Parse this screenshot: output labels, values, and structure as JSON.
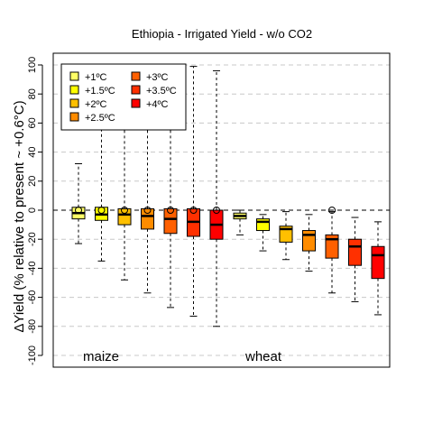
{
  "chart_data": {
    "type": "box",
    "title": "Ethiopia - Irrigated Yield - w/o CO2",
    "ylabel": "ΔYield (% relative to present ~ +0.6°C)",
    "xlabel": "",
    "ylim": [
      -105,
      105
    ],
    "yticks": [
      -100,
      -80,
      -60,
      -40,
      -20,
      0,
      20,
      40,
      60,
      80,
      100
    ],
    "grid": "horizontal-dashed",
    "legend_position": "top-left",
    "legend": [
      {
        "label": "+1ºC",
        "color": "#ffff66"
      },
      {
        "label": "+1.5ºC",
        "color": "#ffff00"
      },
      {
        "label": "+2ºC",
        "color": "#ffc000"
      },
      {
        "label": "+2.5ºC",
        "color": "#ff8c00"
      },
      {
        "label": "+3ºC",
        "color": "#ff6000"
      },
      {
        "label": "+3.5ºC",
        "color": "#ff3000"
      },
      {
        "label": "+4ºC",
        "color": "#ff0000"
      }
    ],
    "groups": [
      {
        "label": "maize",
        "boxes": [
          {
            "warming": "+1ºC",
            "whisker_low": -23,
            "q1": -6,
            "median": -2,
            "q3": 2,
            "whisker_high": 32,
            "outliers": [
              0
            ]
          },
          {
            "warming": "+1.5ºC",
            "whisker_low": -35,
            "q1": -7,
            "median": -3,
            "q3": 2,
            "whisker_high": 63,
            "outliers": [
              0
            ]
          },
          {
            "warming": "+2ºC",
            "whisker_low": -48,
            "q1": -10,
            "median": -3,
            "q3": 1,
            "whisker_high": 70,
            "outliers": [
              0
            ]
          },
          {
            "warming": "+2.5ºC",
            "whisker_low": -57,
            "q1": -13,
            "median": -4,
            "q3": 1,
            "whisker_high": 80,
            "outliers": [
              0
            ]
          },
          {
            "warming": "+3ºC",
            "whisker_low": -67,
            "q1": -16,
            "median": -6,
            "q3": 1,
            "whisker_high": 92,
            "outliers": [
              0
            ]
          },
          {
            "warming": "+3.5ºC",
            "whisker_low": -73,
            "q1": -18,
            "median": -8,
            "q3": 1,
            "whisker_high": 99,
            "outliers": [
              0
            ]
          },
          {
            "warming": "+4ºC",
            "whisker_low": -80,
            "q1": -20,
            "median": -10,
            "q3": 0,
            "whisker_high": 96,
            "outliers": [
              0
            ]
          }
        ]
      },
      {
        "label": "wheat",
        "boxes": [
          {
            "warming": "+1ºC",
            "whisker_low": -17,
            "q1": -6,
            "median": -4,
            "q3": -2,
            "whisker_high": 0,
            "outliers": []
          },
          {
            "warming": "+1.5ºC",
            "whisker_low": -28,
            "q1": -14,
            "median": -8,
            "q3": -6,
            "whisker_high": -3,
            "outliers": []
          },
          {
            "warming": "+2ºC",
            "whisker_low": -34,
            "q1": -22,
            "median": -13,
            "q3": -11,
            "whisker_high": -1,
            "outliers": []
          },
          {
            "warming": "+2.5ºC",
            "whisker_low": -42,
            "q1": -28,
            "median": -17,
            "q3": -14,
            "whisker_high": -3,
            "outliers": []
          },
          {
            "warming": "+3ºC",
            "whisker_low": -57,
            "q1": -33,
            "median": -20,
            "q3": -17,
            "whisker_high": -1,
            "outliers": [
              0
            ]
          },
          {
            "warming": "+3.5ºC",
            "whisker_low": -63,
            "q1": -38,
            "median": -25,
            "q3": -20,
            "whisker_high": -5,
            "outliers": []
          },
          {
            "warming": "+4ºC",
            "whisker_low": -72,
            "q1": -47,
            "median": -31,
            "q3": -25,
            "whisker_high": -8,
            "outliers": []
          }
        ]
      }
    ]
  }
}
